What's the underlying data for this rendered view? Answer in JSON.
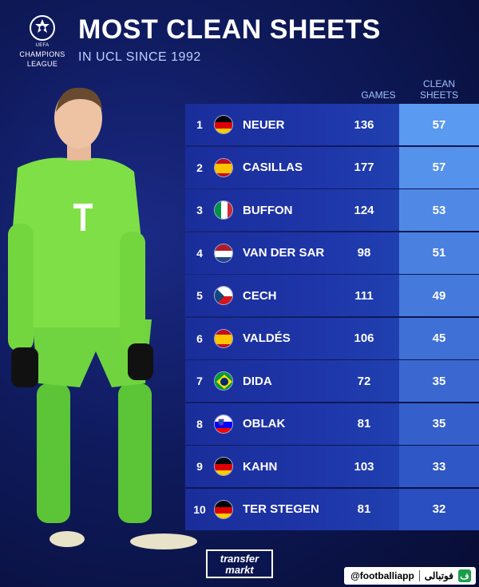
{
  "header": {
    "title": "MOST CLEAN SHEETS",
    "subtitle": "IN UCL SINCE 1992",
    "logo_line1": "CHAMPIONS",
    "logo_line2": "LEAGUE",
    "logo_small": "UEFA"
  },
  "table": {
    "col_games": "GAMES",
    "col_clean_1": "CLEAN",
    "col_clean_2": "SHEETS",
    "rows": [
      {
        "rank": "1",
        "flag": "germany-flag-icon",
        "name": "NEUER",
        "games": "136",
        "clean_sheets": "57"
      },
      {
        "rank": "2",
        "flag": "spain-flag-icon",
        "name": "CASILLAS",
        "games": "177",
        "clean_sheets": "57"
      },
      {
        "rank": "3",
        "flag": "italy-flag-icon",
        "name": "BUFFON",
        "games": "124",
        "clean_sheets": "53"
      },
      {
        "rank": "4",
        "flag": "netherlands-flag-icon",
        "name": "VAN DER SAR",
        "games": "98",
        "clean_sheets": "51"
      },
      {
        "rank": "5",
        "flag": "czech-flag-icon",
        "name": "CECH",
        "games": "111",
        "clean_sheets": "49"
      },
      {
        "rank": "6",
        "flag": "spain-flag-icon",
        "name": "VALDÉS",
        "games": "106",
        "clean_sheets": "45"
      },
      {
        "rank": "7",
        "flag": "brazil-flag-icon",
        "name": "DIDA",
        "games": "72",
        "clean_sheets": "35"
      },
      {
        "rank": "8",
        "flag": "slovenia-flag-icon",
        "name": "OBLAK",
        "games": "81",
        "clean_sheets": "35"
      },
      {
        "rank": "9",
        "flag": "germany-flag-icon",
        "name": "KAHN",
        "games": "103",
        "clean_sheets": "33"
      },
      {
        "rank": "10",
        "flag": "germany-flag-icon",
        "name": "TER STEGEN",
        "games": "81",
        "clean_sheets": "32"
      }
    ]
  },
  "footer": {
    "brand_line1": "transfer",
    "brand_line2": "markt",
    "handle": "@footballiapp",
    "app_name": "فوتبالی",
    "app_icon_letter": "ف"
  },
  "colors": {
    "background": "#0f1a5c",
    "row_left": "#1e35a8",
    "cs_top": "#5a9af0",
    "cs_bottom": "#2a4fc0",
    "kit_green": "#7ee046"
  }
}
